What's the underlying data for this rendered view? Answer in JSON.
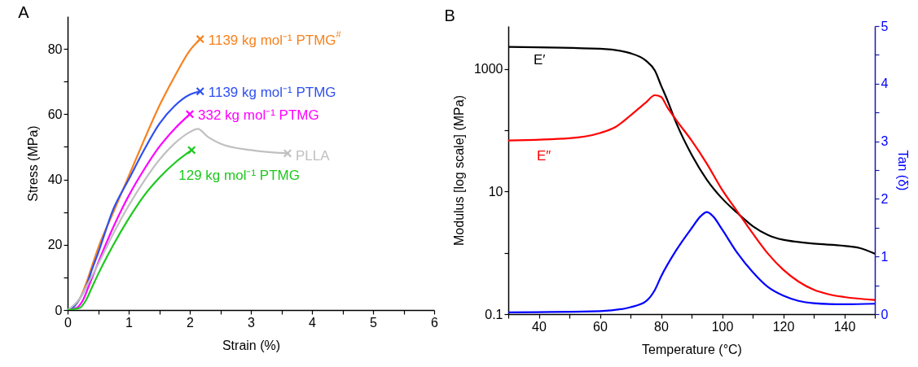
{
  "chart_data": [
    {
      "type": "line",
      "title": "A",
      "xlabel": "Strain (%)",
      "ylabel": "Stress (MPa)",
      "xlim": [
        0,
        6
      ],
      "ylim": [
        0,
        90
      ],
      "xticks": [
        0,
        {
          "value": 0.5,
          "label": null
        },
        1,
        {
          "value": 1.5,
          "label": null
        },
        2,
        {
          "value": 2.5,
          "label": null
        },
        3,
        {
          "value": 3.5,
          "label": null
        },
        4,
        {
          "value": 4.5,
          "label": null
        },
        5,
        {
          "value": 5.5,
          "label": null
        },
        6
      ],
      "yticks": [
        0,
        {
          "value": 10,
          "label": null
        },
        20,
        {
          "value": 30,
          "label": null
        },
        40,
        {
          "value": 50,
          "label": null
        },
        60,
        {
          "value": 70,
          "label": null
        },
        80
      ],
      "grid": false,
      "line_style": "solid",
      "series": [
        {
          "name": "1139 kg mol⁻¹ PTMG$^{#}$",
          "color": "#f7821e",
          "x": [
            0,
            0.1,
            0.2,
            0.3,
            0.4,
            0.5,
            0.75,
            1,
            1.25,
            1.5,
            1.75,
            2,
            2.17
          ],
          "values": [
            0,
            1,
            3.5,
            8,
            13.5,
            19,
            30,
            41,
            52,
            62.5,
            71.5,
            79.5,
            83
          ]
        },
        {
          "name": "1139 kg mol⁻¹ PTMG",
          "color": "#2f50f0",
          "x": [
            0,
            0.1,
            0.2,
            0.3,
            0.4,
            0.5,
            0.75,
            1,
            1.25,
            1.5,
            1.75,
            2,
            2.17
          ],
          "values": [
            0,
            1,
            3.5,
            7,
            12.5,
            17.5,
            31,
            40,
            49,
            57,
            62.5,
            66,
            67
          ]
        },
        {
          "name": "332 kg mol⁻¹ PTMG",
          "color": "#ff00ff",
          "x": [
            0,
            0.15,
            0.25,
            0.35,
            0.5,
            0.75,
            1,
            1.25,
            1.5,
            1.75,
            2
          ],
          "values": [
            0,
            0.7,
            3,
            7.5,
            14.5,
            25.5,
            35,
            43,
            50,
            55.5,
            60
          ]
        },
        {
          "name": "PLLA",
          "color": "#c0c0c0",
          "x": [
            0,
            0.1,
            0.2,
            0.3,
            0.5,
            0.75,
            1,
            1.25,
            1.5,
            1.75,
            2,
            2.13,
            2.3,
            2.5,
            3,
            3.6
          ],
          "values": [
            0,
            1.5,
            3.5,
            7,
            14,
            23.5,
            32,
            39.5,
            46,
            51,
            54.5,
            55.5,
            53,
            51,
            49,
            48
          ]
        },
        {
          "name": "129 kg mol⁻¹ PTMG",
          "color": "#1ec81e",
          "x": [
            0,
            0.2,
            0.3,
            0.4,
            0.5,
            0.75,
            1,
            1.25,
            1.5,
            1.75,
            2.03
          ],
          "values": [
            0,
            0.7,
            3,
            7,
            11,
            20,
            28,
            35,
            40.5,
            45,
            49
          ]
        },
        {
          "type": "scatter",
          "marker": "cross",
          "color": "#f7821e",
          "x": [
            2.17
          ],
          "values": [
            83
          ]
        },
        {
          "type": "scatter",
          "marker": "cross",
          "color": "#2f50f0",
          "x": [
            2.17
          ],
          "values": [
            67
          ]
        },
        {
          "type": "scatter",
          "marker": "cross",
          "color": "#ff00ff",
          "x": [
            2.0
          ],
          "values": [
            60
          ]
        },
        {
          "type": "scatter",
          "marker": "cross",
          "color": "#c0c0c0",
          "x": [
            3.6
          ],
          "values": [
            48
          ]
        },
        {
          "type": "scatter",
          "marker": "cross",
          "color": "#1ec81e",
          "x": [
            2.03
          ],
          "values": [
            49
          ]
        }
      ]
    },
    {
      "type": "line",
      "title": "B",
      "xlabel": "Temperature (°C)",
      "ylabel": "Modulus [log scale] (MPa)",
      "y2label": "Tan (δ)",
      "log": "y",
      "xlim": [
        30,
        150
      ],
      "ylim": [
        0.1,
        5000
      ],
      "y2lim": [
        0,
        5
      ],
      "xticks": [
        {
          "value": 30,
          "label": null
        },
        40,
        {
          "value": 50,
          "label": null
        },
        60,
        {
          "value": 70,
          "label": null
        },
        80,
        {
          "value": 90,
          "label": null
        },
        100,
        {
          "value": 110,
          "label": null
        },
        120,
        {
          "value": 130,
          "label": null
        },
        140,
        {
          "value": 150,
          "label": null
        }
      ],
      "yticks": [
        0.1,
        {
          "value": 1,
          "label": null
        },
        10,
        {
          "value": 100,
          "label": null
        },
        1000
      ],
      "y2ticks": [
        0,
        {
          "value": 0.5,
          "label": null
        },
        1,
        {
          "value": 1.5,
          "label": null
        },
        2,
        {
          "value": 2.5,
          "label": null
        },
        3,
        {
          "value": 3.5,
          "label": null
        },
        4,
        {
          "value": 4.5,
          "label": null
        },
        5
      ],
      "grid": false,
      "line_style": "solid",
      "series": [
        {
          "name": "E′",
          "color": "#000000",
          "x": [
            30,
            60,
            70,
            75,
            78,
            80,
            82,
            85,
            90,
            95,
            100,
            105,
            110,
            115,
            120,
            125,
            130,
            140,
            145,
            150
          ],
          "values": [
            2290,
            2130,
            1800,
            1370,
            935,
            540,
            316,
            131,
            40,
            15.6,
            7.7,
            4.46,
            2.73,
            1.96,
            1.63,
            1.5,
            1.41,
            1.3,
            1.2,
            0.97
          ]
        },
        {
          "name": "E″",
          "color": "#ff0000",
          "x": [
            30,
            50,
            60,
            65,
            70,
            75,
            78,
            80,
            82,
            85,
            90,
            95,
            100,
            105,
            110,
            115,
            120,
            125,
            130,
            135,
            140,
            150
          ],
          "values": [
            68,
            74,
            90,
            112,
            174,
            282,
            372,
            350,
            240,
            146,
            68,
            28.5,
            10.7,
            4.7,
            2.08,
            0.97,
            0.53,
            0.34,
            0.25,
            0.21,
            0.19,
            0.17
          ]
        },
        {
          "axis": "y2",
          "color": "#0000ff",
          "x": [
            30,
            60,
            70,
            75,
            78,
            80,
            85,
            90,
            93,
            95,
            97,
            100,
            105,
            110,
            115,
            120,
            125,
            130,
            140,
            150
          ],
          "values": [
            0.03,
            0.05,
            0.12,
            0.22,
            0.42,
            0.65,
            1.11,
            1.49,
            1.7,
            1.77,
            1.7,
            1.47,
            1.06,
            0.73,
            0.47,
            0.32,
            0.23,
            0.19,
            0.17,
            0.18
          ]
        }
      ]
    }
  ]
}
